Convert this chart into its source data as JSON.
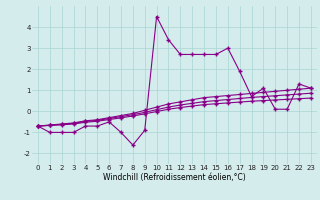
{
  "x": [
    0,
    1,
    2,
    3,
    4,
    5,
    6,
    7,
    8,
    9,
    10,
    11,
    12,
    13,
    14,
    15,
    16,
    17,
    18,
    19,
    20,
    21,
    22,
    23
  ],
  "y_jagged": [
    -0.7,
    -1.0,
    -1.0,
    -1.0,
    -0.7,
    -0.7,
    -0.5,
    -1.0,
    -1.6,
    -0.9,
    4.5,
    3.4,
    2.7,
    2.7,
    2.7,
    2.7,
    3.0,
    1.9,
    0.7,
    1.1,
    0.1,
    0.1,
    1.3,
    1.1
  ],
  "y_diag1": [
    -0.7,
    -0.65,
    -0.6,
    -0.55,
    -0.45,
    -0.4,
    -0.3,
    -0.2,
    -0.1,
    0.05,
    0.2,
    0.35,
    0.45,
    0.55,
    0.65,
    0.7,
    0.75,
    0.8,
    0.85,
    0.9,
    0.95,
    1.0,
    1.05,
    1.1
  ],
  "y_diag2": [
    -0.7,
    -0.66,
    -0.62,
    -0.57,
    -0.48,
    -0.43,
    -0.34,
    -0.25,
    -0.16,
    -0.05,
    0.08,
    0.2,
    0.3,
    0.38,
    0.46,
    0.51,
    0.56,
    0.61,
    0.66,
    0.7,
    0.74,
    0.78,
    0.82,
    0.86
  ],
  "y_diag3": [
    -0.7,
    -0.67,
    -0.64,
    -0.6,
    -0.52,
    -0.47,
    -0.39,
    -0.31,
    -0.22,
    -0.12,
    -0.01,
    0.1,
    0.18,
    0.25,
    0.32,
    0.36,
    0.4,
    0.44,
    0.48,
    0.51,
    0.54,
    0.57,
    0.6,
    0.63
  ],
  "color": "#880088",
  "bg_color": "#d4ecec",
  "grid_color": "#aad4d4",
  "xlabel": "Windchill (Refroidissement éolien,°C)",
  "ylim": [
    -2.5,
    5.0
  ],
  "xlim": [
    -0.5,
    23.5
  ],
  "yticks": [
    -2,
    -1,
    0,
    1,
    2,
    3,
    4
  ],
  "xticks": [
    0,
    1,
    2,
    3,
    4,
    5,
    6,
    7,
    8,
    9,
    10,
    11,
    12,
    13,
    14,
    15,
    16,
    17,
    18,
    19,
    20,
    21,
    22,
    23
  ],
  "tick_fontsize": 5.0,
  "xlabel_fontsize": 5.5
}
